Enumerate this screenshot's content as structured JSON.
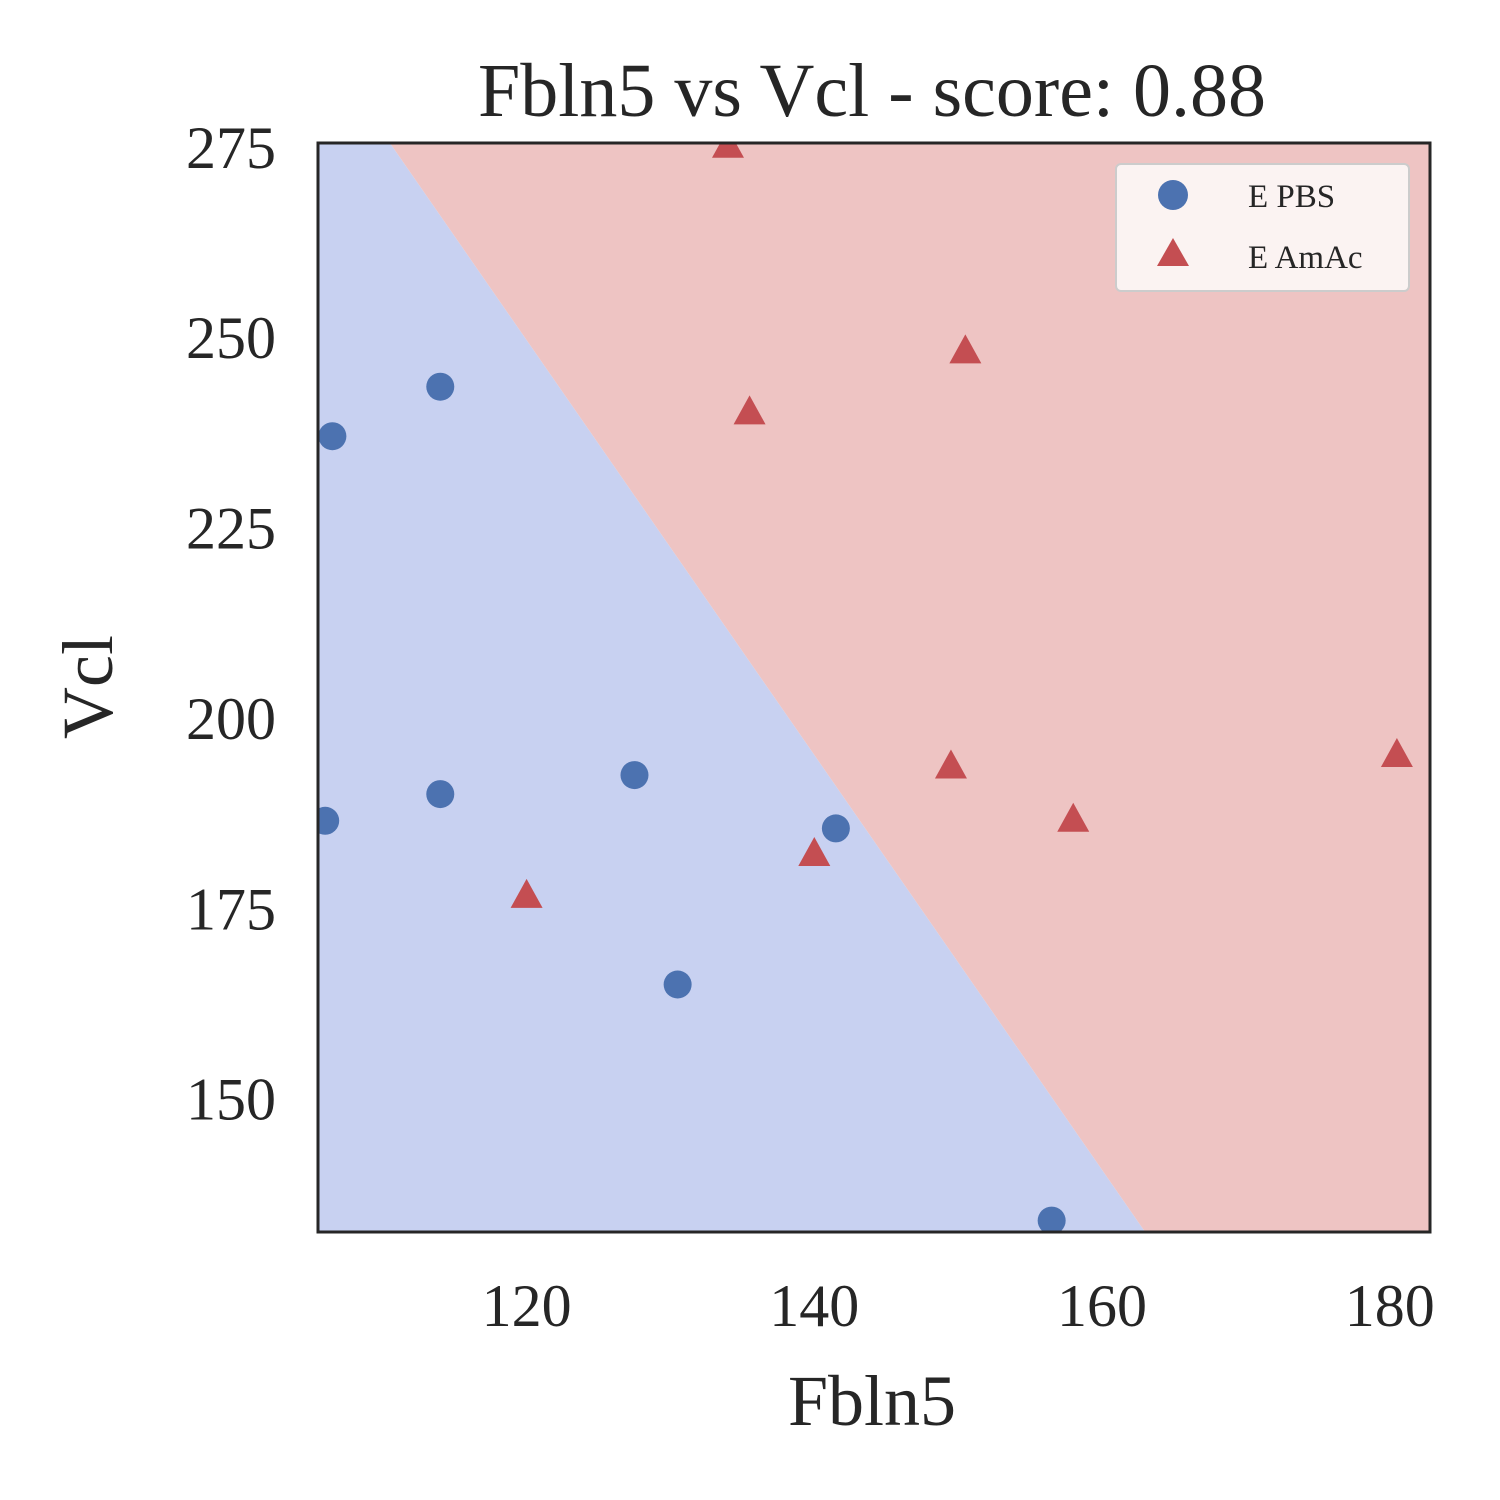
{
  "chart_data": {
    "type": "scatter",
    "title": "Fbln5 vs Vcl - score: 0.88",
    "xlabel": "Fbln5",
    "ylabel": "Vcl",
    "xlim": [
      105.5,
      182.8
    ],
    "ylim": [
      132.5,
      275.5
    ],
    "xticks": [
      120,
      140,
      160,
      180
    ],
    "yticks": [
      150,
      175,
      200,
      225,
      250,
      275
    ],
    "grid": false,
    "legend_position": "top-right",
    "decision_boundary": {
      "description": "linear classifier boundary",
      "points": [
        [
          110.5,
          275.5
        ],
        [
          163.0,
          132.5
        ]
      ],
      "region_colors": {
        "E PBS": "#c8d1f1",
        "E AmAc": "#eec4c3"
      }
    },
    "series": [
      {
        "name": "E PBS",
        "marker": "circle",
        "color": "#4c72b0",
        "points": [
          [
            106.5,
            237.0
          ],
          [
            114.0,
            243.5
          ],
          [
            106.0,
            186.5
          ],
          [
            114.0,
            190.0
          ],
          [
            127.5,
            192.5
          ],
          [
            130.5,
            165.0
          ],
          [
            141.5,
            185.5
          ],
          [
            156.5,
            134.0
          ]
        ]
      },
      {
        "name": "E AmAc",
        "marker": "triangle",
        "color": "#c44e52",
        "points": [
          [
            134.0,
            275.0
          ],
          [
            135.5,
            240.0
          ],
          [
            150.5,
            248.0
          ],
          [
            120.0,
            176.5
          ],
          [
            140.0,
            182.0
          ],
          [
            149.5,
            193.5
          ],
          [
            158.0,
            186.5
          ],
          [
            180.5,
            195.0
          ]
        ]
      }
    ]
  }
}
